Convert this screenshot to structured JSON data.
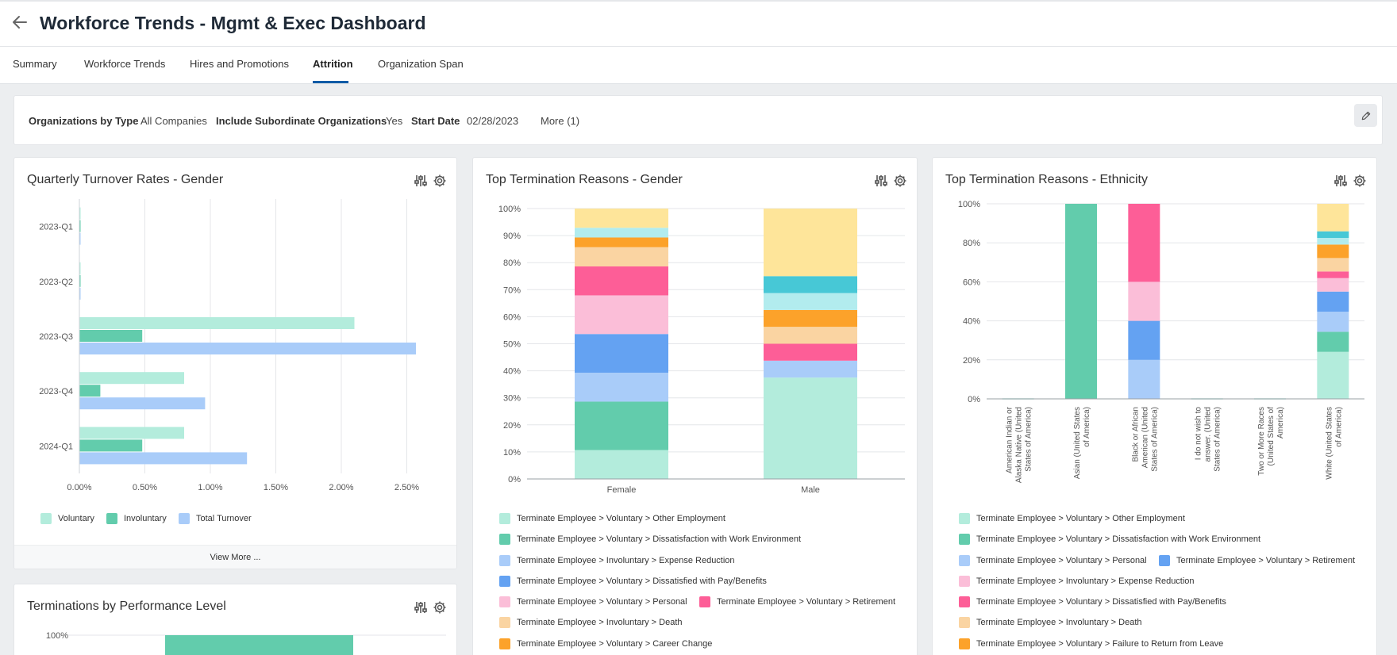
{
  "header": {
    "title": "Workforce Trends - Mgmt & Exec Dashboard"
  },
  "tabs": [
    {
      "label": "Summary"
    },
    {
      "label": "Workforce Trends"
    },
    {
      "label": "Hires and Promotions"
    },
    {
      "label": "Attrition"
    },
    {
      "label": "Organization Span"
    }
  ],
  "active_tab": "Attrition",
  "filters": {
    "org_type_label": "Organizations by Type",
    "org_type_value": "All Companies",
    "subordinate_label": "Include Subordinate Organizations",
    "subordinate_value": "Yes",
    "start_date_label": "Start Date",
    "start_date_value": "02/28/2023",
    "more": "More (1)"
  },
  "colors": {
    "mint": "#b3ecdc",
    "teal": "#62ccac",
    "lightblue": "#a9ccf9",
    "blue": "#64a2f2",
    "pink": "#fbbed8",
    "magenta": "#fd5e97",
    "peach": "#fad4a2",
    "orange": "#fca22a",
    "cyan": "#b2ecee",
    "turquoise": "#47c8d6",
    "yellow": "#fee59a"
  },
  "cards": {
    "turnover": {
      "title": "Quarterly Turnover Rates - Gender",
      "view_more": "View More ..."
    },
    "gender": {
      "title": "Top Termination Reasons - Gender"
    },
    "ethnicity": {
      "title": "Top Termination Reasons - Ethnicity"
    },
    "performance": {
      "title": "Terminations by Performance Level"
    }
  },
  "chart_data": [
    {
      "type": "bar",
      "orientation": "horizontal",
      "title": "Quarterly Turnover Rates - Gender",
      "categories": [
        "2023-Q1",
        "2023-Q2",
        "2023-Q3",
        "2023-Q4",
        "2024-Q1"
      ],
      "x_ticks": [
        "0.00%",
        "0.50%",
        "1.00%",
        "1.50%",
        "2.00%",
        "2.50%"
      ],
      "xlim": [
        0,
        2.6
      ],
      "grid": true,
      "legend_position": "bottom",
      "series": [
        {
          "name": "Voluntary",
          "color": "mint",
          "values": [
            0.0,
            0.0,
            2.1,
            0.8,
            0.8
          ]
        },
        {
          "name": "Involuntary",
          "color": "teal",
          "values": [
            0.0,
            0.0,
            0.48,
            0.16,
            0.48
          ]
        },
        {
          "name": "Total Turnover",
          "color": "lightblue",
          "values": [
            0.0,
            0.0,
            2.57,
            0.96,
            1.28
          ]
        }
      ]
    },
    {
      "type": "bar",
      "stacked": true,
      "title": "Top Termination Reasons - Gender",
      "categories": [
        "Female",
        "Male"
      ],
      "y_ticks": [
        "0%",
        "10%",
        "20%",
        "30%",
        "40%",
        "50%",
        "60%",
        "70%",
        "80%",
        "90%",
        "100%"
      ],
      "ylim": [
        0,
        100
      ],
      "grid": true,
      "legend_position": "bottom",
      "series": [
        {
          "name": "Terminate Employee > Voluntary > Other Employment",
          "color": "mint",
          "values": [
            10.7,
            37.5
          ]
        },
        {
          "name": "Terminate Employee > Voluntary > Dissatisfaction with Work Environment",
          "color": "teal",
          "values": [
            17.9,
            0
          ]
        },
        {
          "name": "Terminate Employee > Involuntary > Expense Reduction",
          "color": "lightblue",
          "values": [
            10.7,
            6.25
          ]
        },
        {
          "name": "Terminate Employee > Voluntary > Dissatisfied with Pay/Benefits",
          "color": "blue",
          "values": [
            14.3,
            0
          ]
        },
        {
          "name": "Terminate Employee > Voluntary > Personal",
          "color": "pink",
          "values": [
            14.3,
            0
          ]
        },
        {
          "name": "Terminate Employee > Voluntary > Retirement",
          "color": "magenta",
          "values": [
            10.7,
            6.25
          ]
        },
        {
          "name": "Terminate Employee > Involuntary > Death",
          "color": "peach",
          "values": [
            7.1,
            6.25
          ]
        },
        {
          "name": "Terminate Employee > Voluntary > Career Change",
          "color": "orange",
          "values": [
            3.6,
            6.25
          ]
        },
        {
          "name": "",
          "color": "cyan",
          "values": [
            3.6,
            6.25
          ]
        },
        {
          "name": "",
          "color": "turquoise",
          "values": [
            0,
            6.25
          ]
        },
        {
          "name": "",
          "color": "yellow",
          "values": [
            7.1,
            25.0
          ]
        }
      ]
    },
    {
      "type": "bar",
      "stacked": true,
      "title": "Top Termination Reasons - Ethnicity",
      "categories": [
        "American Indian or Alaska Native (United States of America)",
        "Asian (United States of America)",
        "Black or African American (United States of America)",
        "I do not wish to answer. (United States of America)",
        "Two or More Races (United States of America)",
        "White (United States of America)"
      ],
      "y_ticks": [
        "0%",
        "20%",
        "40%",
        "60%",
        "80%",
        "100%"
      ],
      "ylim": [
        0,
        100
      ],
      "grid": true,
      "legend_position": "bottom",
      "series": [
        {
          "name": "Terminate Employee > Voluntary > Other Employment",
          "color": "mint",
          "values": [
            0,
            0,
            0,
            0,
            0,
            24.1
          ]
        },
        {
          "name": "Terminate Employee > Voluntary > Dissatisfaction with Work Environment",
          "color": "teal",
          "values": [
            0,
            100,
            0,
            0,
            0,
            10.3
          ]
        },
        {
          "name": "Terminate Employee > Voluntary > Personal",
          "color": "lightblue",
          "values": [
            0,
            0,
            20,
            0,
            0,
            10.3
          ]
        },
        {
          "name": "Terminate Employee > Voluntary > Retirement",
          "color": "blue",
          "values": [
            0,
            0,
            20,
            0,
            0,
            10.3
          ]
        },
        {
          "name": "Terminate Employee > Involuntary > Expense Reduction",
          "color": "pink",
          "values": [
            0,
            0,
            20,
            0,
            0,
            6.9
          ]
        },
        {
          "name": "Terminate Employee > Voluntary > Dissatisfied with Pay/Benefits",
          "color": "magenta",
          "values": [
            0,
            0,
            40,
            0,
            0,
            3.4
          ]
        },
        {
          "name": "Terminate Employee > Involuntary > Death",
          "color": "peach",
          "values": [
            0,
            0,
            0,
            0,
            0,
            6.9
          ]
        },
        {
          "name": "Terminate Employee > Voluntary > Failure to Return from Leave",
          "color": "orange",
          "values": [
            0,
            0,
            0,
            0,
            0,
            6.9
          ]
        },
        {
          "name": "",
          "color": "cyan",
          "values": [
            0,
            0,
            0,
            0,
            0,
            3.4
          ]
        },
        {
          "name": "",
          "color": "turquoise",
          "values": [
            0,
            0,
            0,
            0,
            0,
            3.4
          ]
        },
        {
          "name": "",
          "color": "yellow",
          "values": [
            0,
            0,
            0,
            0,
            0,
            14.1
          ]
        }
      ]
    },
    {
      "type": "bar",
      "title": "Terminations by Performance Level",
      "y_ticks": [
        "100%"
      ],
      "ylim": [
        0,
        100
      ],
      "series": [
        {
          "name": "",
          "color": "teal",
          "values": [
            100
          ]
        }
      ]
    }
  ],
  "legends": {
    "turnover": [
      "Voluntary",
      "Involuntary",
      "Total Turnover"
    ],
    "gender": [
      "Terminate Employee > Voluntary > Other Employment",
      "Terminate Employee > Voluntary > Dissatisfaction with Work Environment",
      "Terminate Employee > Involuntary > Expense Reduction",
      "Terminate Employee > Voluntary > Dissatisfied with Pay/Benefits",
      "Terminate Employee > Voluntary > Personal",
      "Terminate Employee > Voluntary > Retirement",
      "Terminate Employee > Involuntary > Death",
      "Terminate Employee > Voluntary > Career Change"
    ],
    "ethnicity": [
      "Terminate Employee > Voluntary > Other Employment",
      "Terminate Employee > Voluntary > Dissatisfaction with Work Environment",
      "Terminate Employee > Voluntary > Personal",
      "Terminate Employee > Voluntary > Retirement",
      "Terminate Employee > Involuntary > Expense Reduction",
      "Terminate Employee > Voluntary > Dissatisfied with Pay/Benefits",
      "Terminate Employee > Involuntary > Death",
      "Terminate Employee > Voluntary > Failure to Return from Leave"
    ]
  },
  "ethnicity_axis_labels": [
    [
      "American Indian or",
      "Alaska Native (United",
      "States of America)"
    ],
    [
      "Asian (United States",
      "of America)"
    ],
    [
      "Black or African",
      "American (United",
      "States of America)"
    ],
    [
      "I do not wish to",
      "answer. (United",
      "States of America)"
    ],
    [
      "Two or More Races",
      "(United States of",
      "America)"
    ],
    [
      "White (United States",
      "of America)"
    ]
  ]
}
